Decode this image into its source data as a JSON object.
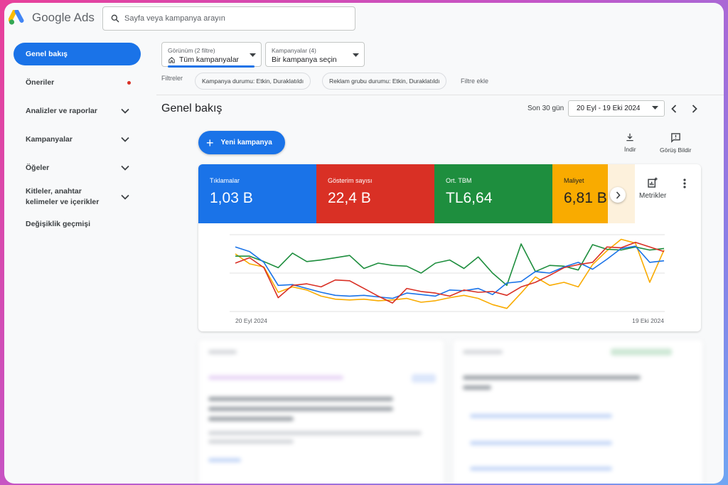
{
  "app": {
    "name": "Google Ads"
  },
  "search": {
    "placeholder": "Sayfa veya kampanya arayın"
  },
  "sidebar": {
    "items": [
      {
        "label": "Genel bakış",
        "active": true
      },
      {
        "label": "Öneriler",
        "badge_color": "#d93025"
      },
      {
        "label": "Analizler ve raporlar"
      },
      {
        "label": "Kampanyalar"
      },
      {
        "label": "Öğeler"
      },
      {
        "label": "Kitleler, anahtar kelimeler ve içerikler"
      },
      {
        "label": "Değişiklik geçmişi"
      }
    ]
  },
  "filters": {
    "view": {
      "label": "Görünüm (2 filtre)",
      "value": "Tüm kampanyalar"
    },
    "campaigns": {
      "label": "Kampanyalar (4)",
      "value": "Bir kampanya seçin"
    },
    "label": "Filtreler",
    "chips": [
      "Kampanya durumu: Etkin, Duraklatıldı",
      "Reklam grubu durumu: Etkin, Duraklatıldı"
    ],
    "add": "Filtre ekle"
  },
  "page": {
    "title": "Genel bakış",
    "date_range_label": "Son 30 gün",
    "date_range": "20 Eyl - 19 Eki 2024"
  },
  "actions": {
    "new_campaign": "Yeni kampanya",
    "download": "İndir",
    "feedback": "Görüş Bildir"
  },
  "metrics": {
    "tiles": [
      {
        "name": "Tıklamalar",
        "value": "1,03 B",
        "color": "#1a73e8"
      },
      {
        "name": "Gösterim sayısı",
        "value": "22,4 B",
        "color": "#d93025"
      },
      {
        "name": "Ort. TBM",
        "value": "TL6,64",
        "color": "#1e8e3e"
      },
      {
        "name": "Maliyet",
        "value": "6,81 B",
        "color": "#f9ab00"
      }
    ],
    "metrics_button": "Metrikler"
  },
  "chart_data": {
    "type": "line",
    "x_start_label": "20 Eyl 2024",
    "x_end_label": "19 Eki 2024",
    "ylim": [
      0,
      100
    ],
    "grid": true,
    "series": [
      {
        "name": "Tıklamalar",
        "color": "#1a73e8",
        "values": [
          84,
          78,
          64,
          34,
          35,
          30,
          25,
          21,
          20,
          21,
          19,
          17,
          24,
          22,
          20,
          28,
          27,
          30,
          22,
          37,
          39,
          52,
          50,
          58,
          64,
          55,
          68,
          82,
          85,
          64,
          66
        ]
      },
      {
        "name": "Gösterim sayısı",
        "color": "#d93025",
        "values": [
          63,
          70,
          57,
          18,
          34,
          36,
          32,
          41,
          40,
          30,
          20,
          11,
          30,
          26,
          24,
          20,
          28,
          25,
          26,
          21,
          32,
          38,
          47,
          57,
          61,
          64,
          84,
          83,
          90,
          84,
          78
        ]
      },
      {
        "name": "Ort. TBM",
        "color": "#1e8e3e",
        "values": [
          72,
          72,
          65,
          57,
          76,
          65,
          67,
          70,
          73,
          56,
          63,
          60,
          59,
          50,
          63,
          67,
          56,
          71,
          50,
          34,
          88,
          52,
          60,
          59,
          54,
          87,
          81,
          80,
          84,
          80,
          82
        ]
      },
      {
        "name": "Maliyet",
        "color": "#f9ab00",
        "values": [
          75,
          62,
          58,
          25,
          32,
          28,
          20,
          16,
          15,
          16,
          14,
          15,
          17,
          12,
          14,
          18,
          21,
          17,
          9,
          4,
          24,
          45,
          34,
          38,
          32,
          61,
          79,
          94,
          89,
          38,
          80
        ]
      }
    ]
  }
}
